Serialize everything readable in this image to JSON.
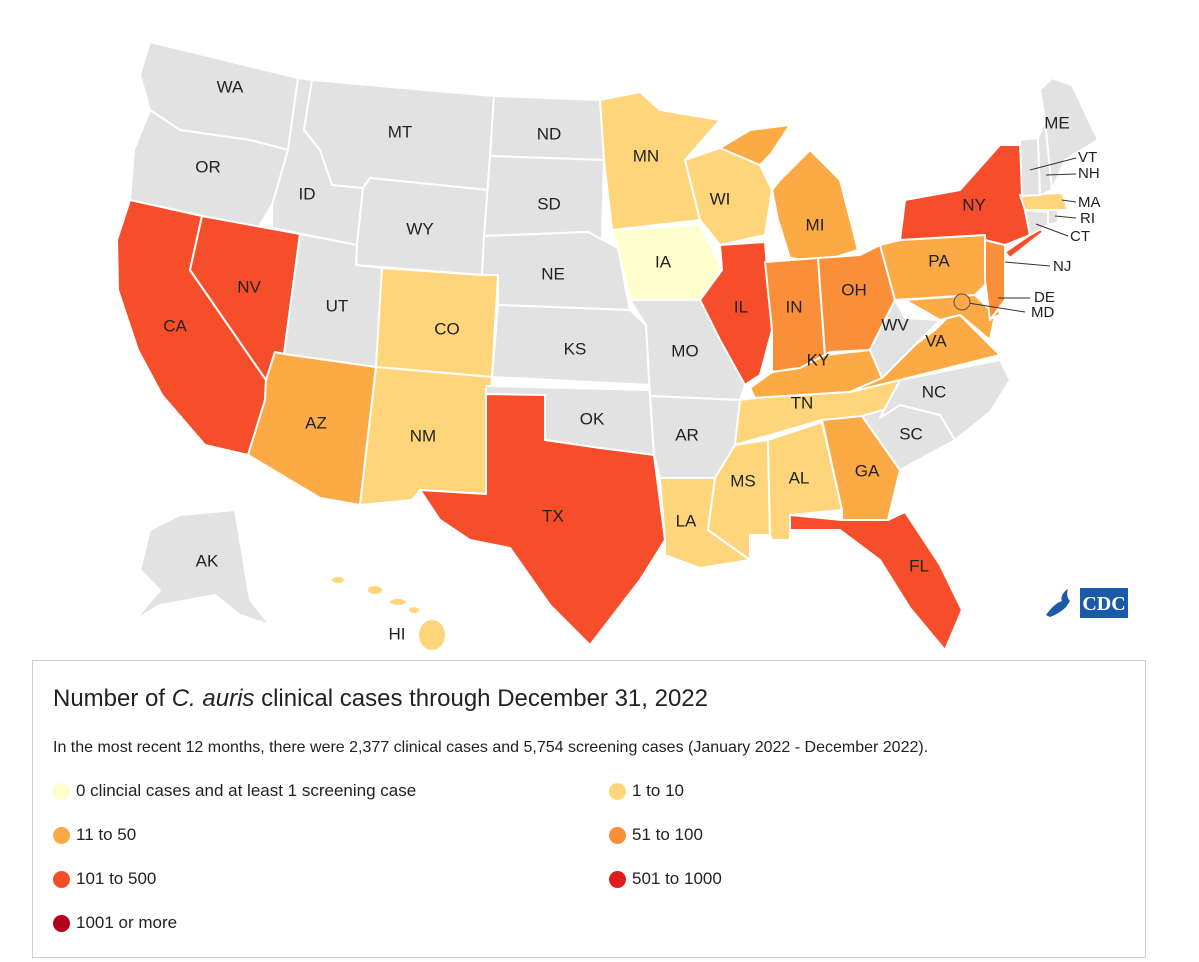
{
  "map": {
    "states": [
      {
        "id": "WA",
        "label": "WA",
        "category": "none"
      },
      {
        "id": "OR",
        "label": "OR",
        "category": "none"
      },
      {
        "id": "CA",
        "label": "CA",
        "category": "101-500"
      },
      {
        "id": "NV",
        "label": "NV",
        "category": "101-500"
      },
      {
        "id": "ID",
        "label": "ID",
        "category": "none"
      },
      {
        "id": "MT",
        "label": "MT",
        "category": "none"
      },
      {
        "id": "WY",
        "label": "WY",
        "category": "none"
      },
      {
        "id": "UT",
        "label": "UT",
        "category": "none"
      },
      {
        "id": "AZ",
        "label": "AZ",
        "category": "11-50"
      },
      {
        "id": "CO",
        "label": "CO",
        "category": "1-10"
      },
      {
        "id": "NM",
        "label": "NM",
        "category": "1-10"
      },
      {
        "id": "ND",
        "label": "ND",
        "category": "none"
      },
      {
        "id": "SD",
        "label": "SD",
        "category": "none"
      },
      {
        "id": "NE",
        "label": "NE",
        "category": "none"
      },
      {
        "id": "KS",
        "label": "KS",
        "category": "none"
      },
      {
        "id": "OK",
        "label": "OK",
        "category": "none"
      },
      {
        "id": "TX",
        "label": "TX",
        "category": "101-500"
      },
      {
        "id": "MN",
        "label": "MN",
        "category": "1-10"
      },
      {
        "id": "IA",
        "label": "IA",
        "category": "0"
      },
      {
        "id": "MO",
        "label": "MO",
        "category": "none"
      },
      {
        "id": "AR",
        "label": "AR",
        "category": "none"
      },
      {
        "id": "LA",
        "label": "LA",
        "category": "1-10"
      },
      {
        "id": "WI",
        "label": "WI",
        "category": "1-10"
      },
      {
        "id": "IL",
        "label": "IL",
        "category": "101-500"
      },
      {
        "id": "MI",
        "label": "MI",
        "category": "11-50"
      },
      {
        "id": "IN",
        "label": "IN",
        "category": "51-100"
      },
      {
        "id": "OH",
        "label": "OH",
        "category": "51-100"
      },
      {
        "id": "KY",
        "label": "KY",
        "category": "11-50"
      },
      {
        "id": "TN",
        "label": "TN",
        "category": "1-10"
      },
      {
        "id": "MS",
        "label": "MS",
        "category": "1-10"
      },
      {
        "id": "AL",
        "label": "AL",
        "category": "1-10"
      },
      {
        "id": "GA",
        "label": "GA",
        "category": "11-50"
      },
      {
        "id": "FL",
        "label": "FL",
        "category": "101-500"
      },
      {
        "id": "SC",
        "label": "SC",
        "category": "none"
      },
      {
        "id": "NC",
        "label": "NC",
        "category": "none"
      },
      {
        "id": "VA",
        "label": "VA",
        "category": "11-50"
      },
      {
        "id": "WV",
        "label": "WV",
        "category": "none"
      },
      {
        "id": "PA",
        "label": "PA",
        "category": "11-50"
      },
      {
        "id": "NY",
        "label": "NY",
        "category": "101-500"
      },
      {
        "id": "NJ",
        "label": "NJ",
        "category": "51-100"
      },
      {
        "id": "DE",
        "label": "DE",
        "category": "11-50"
      },
      {
        "id": "MD",
        "label": "MD",
        "category": "11-50"
      },
      {
        "id": "CT",
        "label": "CT",
        "category": "none"
      },
      {
        "id": "RI",
        "label": "RI",
        "category": "none"
      },
      {
        "id": "MA",
        "label": "MA",
        "category": "1-10"
      },
      {
        "id": "VT",
        "label": "VT",
        "category": "none"
      },
      {
        "id": "NH",
        "label": "NH",
        "category": "none"
      },
      {
        "id": "ME",
        "label": "ME",
        "category": "none"
      },
      {
        "id": "AK",
        "label": "AK",
        "category": "none"
      },
      {
        "id": "HI",
        "label": "HI",
        "category": "1-10"
      }
    ],
    "colors": {
      "none": "#e2e2e2",
      "0": "#fffecd",
      "1-10": "#fed57a",
      "11-50": "#fcaa45",
      "51-100": "#fb8e38",
      "101-500": "#f64e2b",
      "501-1000": "#dd1d20",
      "1001+": "#b3001f"
    }
  },
  "logo": {
    "text": "CDC"
  },
  "legend": {
    "title_prefix": "Number of ",
    "title_italic": "C. auris",
    "title_suffix": " clinical cases through December 31, 2022",
    "note": "In the most recent 12 months, there were 2,377 clinical cases and 5,754 screening cases (January 2022 - December 2022).",
    "items": [
      {
        "label": "0 clincial cases and at least 1 screening case",
        "color": "#fffecd"
      },
      {
        "label": "1 to 10",
        "color": "#fed57a"
      },
      {
        "label": "11 to 50",
        "color": "#fcaa45"
      },
      {
        "label": "51 to 100",
        "color": "#fb8e38"
      },
      {
        "label": "101 to 500",
        "color": "#f64e2b"
      },
      {
        "label": "501 to 1000",
        "color": "#dd1d20"
      },
      {
        "label": "1001 or more",
        "color": "#b3001f"
      }
    ]
  }
}
